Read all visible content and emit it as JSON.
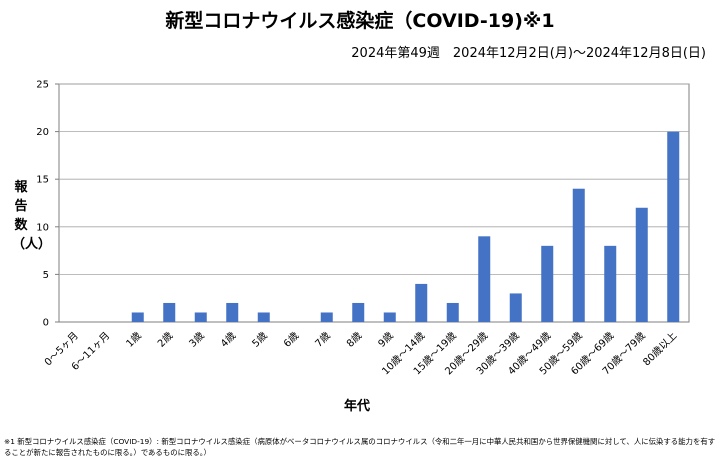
{
  "chart_data": {
    "type": "bar",
    "title": "新型コロナウイルス感染症（COVID-19)※1",
    "subtitle": "2024年第49週　2024年12月2日(月)～2024年12月8日(日)",
    "xlabel": "年代",
    "ylabel": "報告数（人）",
    "ylim": [
      0,
      25
    ],
    "yticks": [
      0,
      5,
      10,
      15,
      20,
      25
    ],
    "grid": true,
    "legend": "none",
    "categories": [
      "0～5ヶ月",
      "6～11ヶ月",
      "1歳",
      "2歳",
      "3歳",
      "4歳",
      "5歳",
      "6歳",
      "7歳",
      "8歳",
      "9歳",
      "10歳～14歳",
      "15歳～19歳",
      "20歳～29歳",
      "30歳～39歳",
      "40歳～49歳",
      "50歳～59歳",
      "60歳～69歳",
      "70歳～79歳",
      "80歳以上"
    ],
    "values": [
      0,
      0,
      1,
      2,
      1,
      2,
      1,
      0,
      1,
      2,
      1,
      4,
      2,
      9,
      3,
      8,
      14,
      8,
      12,
      20
    ],
    "bar_color": "#4472C4"
  },
  "footnote": "※1 新型コロナウイルス感染症（COVID-19）: 新型コロナウイルス感染症（病原体がベータコロナウイルス属のコロナウイルス（令和二年一月に中華人民共和国から世界保健機関に対して、人に伝染する能力を有することが新たに報告されたものに限る。）であるものに限る。）"
}
